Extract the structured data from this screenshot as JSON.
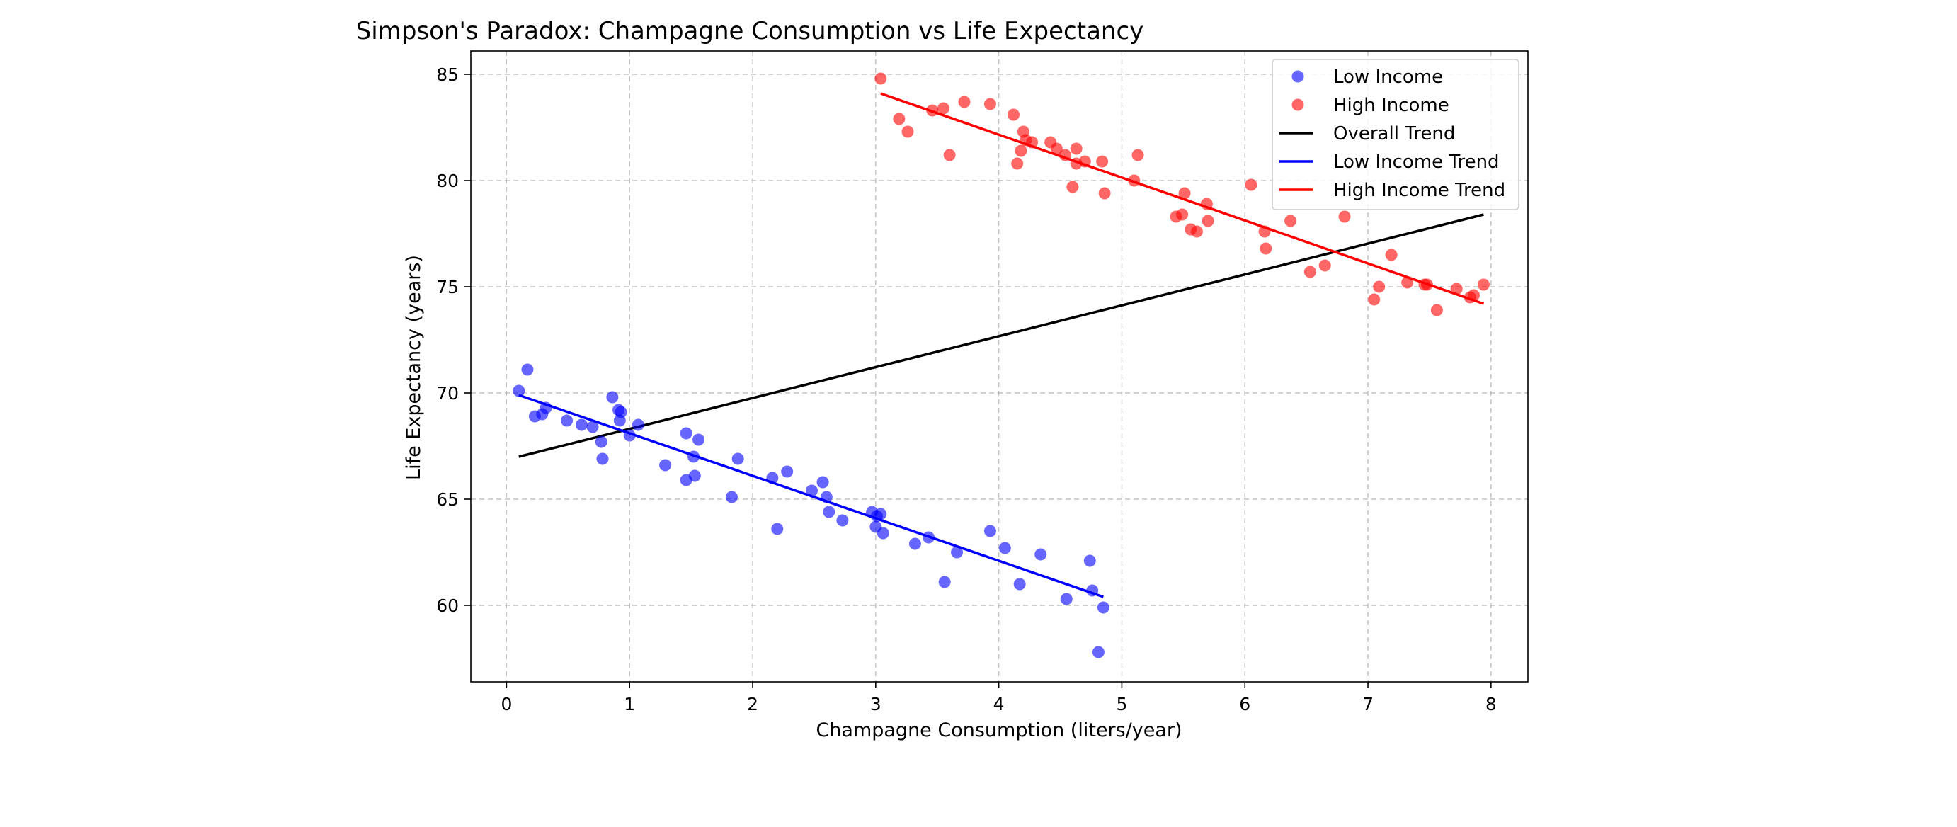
{
  "chart_data": {
    "type": "scatter",
    "title": "Simpson's Paradox: Champagne Consumption vs Life Expectancy",
    "xlabel": "Champagne Consumption (liters/year)",
    "ylabel": "Life Expectancy (years)",
    "xlim": [
      -0.29,
      8.3
    ],
    "ylim": [
      56.4,
      86.1
    ],
    "xticks": [
      0,
      1,
      2,
      3,
      4,
      5,
      6,
      7,
      8
    ],
    "yticks": [
      60,
      65,
      70,
      75,
      80,
      85
    ],
    "grid": true,
    "legend_position": "top-right",
    "series": [
      {
        "name": "Low Income",
        "kind": "scatter",
        "color": "#0000ff",
        "points": [
          [
            0.1,
            70.1
          ],
          [
            0.17,
            71.1
          ],
          [
            0.23,
            68.9
          ],
          [
            0.29,
            69.0
          ],
          [
            0.32,
            69.3
          ],
          [
            0.49,
            68.7
          ],
          [
            0.61,
            68.5
          ],
          [
            0.7,
            68.4
          ],
          [
            0.77,
            67.7
          ],
          [
            0.78,
            66.9
          ],
          [
            0.86,
            69.8
          ],
          [
            0.91,
            69.2
          ],
          [
            0.93,
            69.1
          ],
          [
            0.92,
            68.7
          ],
          [
            1.0,
            68.0
          ],
          [
            1.07,
            68.5
          ],
          [
            1.29,
            66.6
          ],
          [
            1.46,
            68.1
          ],
          [
            1.46,
            65.9
          ],
          [
            1.53,
            66.1
          ],
          [
            1.52,
            67.0
          ],
          [
            1.56,
            67.8
          ],
          [
            1.83,
            65.1
          ],
          [
            1.88,
            66.9
          ],
          [
            2.16,
            66.0
          ],
          [
            2.2,
            63.6
          ],
          [
            2.28,
            66.3
          ],
          [
            2.48,
            65.4
          ],
          [
            2.57,
            65.8
          ],
          [
            2.6,
            65.1
          ],
          [
            2.62,
            64.4
          ],
          [
            2.73,
            64.0
          ],
          [
            2.97,
            64.4
          ],
          [
            3.0,
            63.7
          ],
          [
            3.01,
            64.2
          ],
          [
            3.04,
            64.3
          ],
          [
            3.06,
            63.4
          ],
          [
            3.32,
            62.9
          ],
          [
            3.43,
            63.2
          ],
          [
            3.56,
            61.1
          ],
          [
            3.66,
            62.5
          ],
          [
            3.93,
            63.5
          ],
          [
            4.05,
            62.7
          ],
          [
            4.17,
            61.0
          ],
          [
            4.34,
            62.4
          ],
          [
            4.55,
            60.3
          ],
          [
            4.74,
            62.1
          ],
          [
            4.76,
            60.7
          ],
          [
            4.81,
            57.8
          ],
          [
            4.85,
            59.9
          ]
        ]
      },
      {
        "name": "High Income",
        "kind": "scatter",
        "color": "#ff0000",
        "points": [
          [
            3.04,
            84.8
          ],
          [
            3.19,
            82.9
          ],
          [
            3.26,
            82.3
          ],
          [
            3.46,
            83.3
          ],
          [
            3.55,
            83.4
          ],
          [
            3.6,
            81.2
          ],
          [
            3.72,
            83.7
          ],
          [
            3.93,
            83.6
          ],
          [
            4.12,
            83.1
          ],
          [
            4.15,
            80.8
          ],
          [
            4.18,
            81.4
          ],
          [
            4.2,
            82.3
          ],
          [
            4.22,
            81.9
          ],
          [
            4.27,
            81.8
          ],
          [
            4.42,
            81.8
          ],
          [
            4.47,
            81.5
          ],
          [
            4.54,
            81.2
          ],
          [
            4.6,
            79.7
          ],
          [
            4.63,
            81.5
          ],
          [
            4.63,
            80.8
          ],
          [
            4.7,
            80.9
          ],
          [
            4.84,
            80.9
          ],
          [
            4.86,
            79.4
          ],
          [
            5.1,
            80.0
          ],
          [
            5.13,
            81.2
          ],
          [
            5.44,
            78.3
          ],
          [
            5.49,
            78.4
          ],
          [
            5.51,
            79.4
          ],
          [
            5.56,
            77.7
          ],
          [
            5.61,
            77.6
          ],
          [
            5.69,
            78.9
          ],
          [
            5.7,
            78.1
          ],
          [
            6.05,
            79.8
          ],
          [
            6.16,
            77.6
          ],
          [
            6.17,
            76.8
          ],
          [
            6.37,
            78.1
          ],
          [
            6.53,
            75.7
          ],
          [
            6.65,
            76.0
          ],
          [
            6.81,
            78.3
          ],
          [
            7.05,
            74.4
          ],
          [
            7.09,
            75.0
          ],
          [
            7.19,
            76.5
          ],
          [
            7.32,
            75.2
          ],
          [
            7.46,
            75.1
          ],
          [
            7.48,
            75.1
          ],
          [
            7.56,
            73.9
          ],
          [
            7.72,
            74.9
          ],
          [
            7.83,
            74.5
          ],
          [
            7.86,
            74.6
          ],
          [
            7.94,
            75.1
          ]
        ]
      },
      {
        "name": "Overall Trend",
        "kind": "line",
        "color": "#000000",
        "x": [
          0.1,
          7.94
        ],
        "y": [
          67.0,
          78.4
        ]
      },
      {
        "name": "Low Income Trend",
        "kind": "line",
        "color": "#0000ff",
        "x": [
          0.1,
          4.85
        ],
        "y": [
          69.9,
          60.4
        ]
      },
      {
        "name": "High Income Trend",
        "kind": "line",
        "color": "#ff0000",
        "x": [
          3.04,
          7.94
        ],
        "y": [
          84.1,
          74.2
        ]
      }
    ]
  }
}
